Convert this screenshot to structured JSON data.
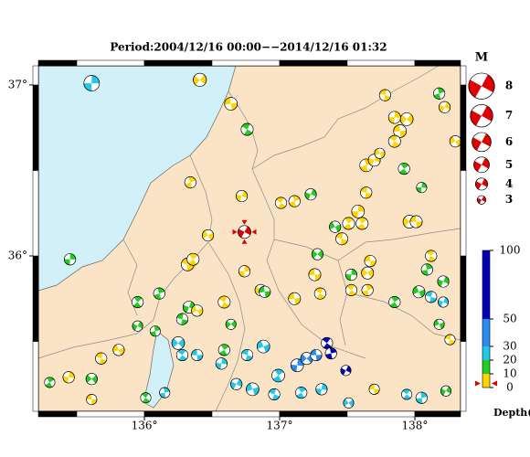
{
  "map": {
    "title": "Period:2004/12/16 00:00−−2014/12/16 01:32",
    "xlim": [
      135.216,
      138.338
    ],
    "ylim": [
      35.091,
      37.112
    ],
    "xticks": [
      {
        "value": 136,
        "label": "136°"
      },
      {
        "value": 137,
        "label": "137°"
      },
      {
        "value": 138,
        "label": "138°"
      }
    ],
    "yticks": [
      {
        "value": 36,
        "label": "36°"
      },
      {
        "value": 37,
        "label": "37°"
      }
    ],
    "events": {
      "lon": [
        135.61,
        136.41,
        136.64,
        136.76,
        136.34,
        136.72,
        136.47,
        136.32,
        136.36,
        136.74,
        136.86,
        136.89,
        136.59,
        136.11,
        136.33,
        136.39,
        136.28,
        135.95,
        135.45,
        136.64,
        137.11,
        137.01,
        137.11,
        137.23,
        137.41,
        137.46,
        137.51,
        137.58,
        137.28,
        137.26,
        137.3,
        137.64,
        137.7,
        137.74,
        137.64,
        137.61,
        137.85,
        137.94,
        137.89,
        137.85,
        138.18,
        138.22,
        138.3,
        137.78,
        137.92,
        138.05,
        137.96,
        138.01,
        138.12,
        138.09,
        138.21,
        138.03,
        138.12,
        137.85,
        137.53,
        137.65,
        137.67,
        137.53,
        137.65,
        138.21,
        138.18,
        138.26,
        136.99,
        137.13,
        137.2,
        137.27,
        137.35,
        137.38,
        137.49,
        136.88,
        136.76,
        136.59,
        136.57,
        136.25,
        136.39,
        136.28,
        136.08,
        135.95,
        135.81,
        135.68,
        135.3,
        135.44,
        135.61,
        135.61,
        136.01,
        136.15,
        136.68,
        136.8,
        136.96,
        137.16,
        137.31,
        137.51,
        137.7,
        137.94,
        138.05,
        138.23
      ],
      "lat": [
        37.01,
        37.03,
        36.89,
        36.74,
        36.43,
        36.35,
        36.12,
        35.95,
        35.98,
        35.91,
        35.8,
        35.79,
        35.73,
        35.78,
        35.7,
        35.68,
        35.63,
        35.73,
        35.98,
        35.6,
        35.75,
        36.31,
        36.32,
        36.36,
        36.17,
        36.1,
        36.19,
        36.26,
        36.01,
        35.89,
        35.78,
        36.53,
        36.56,
        36.6,
        36.37,
        36.19,
        36.81,
        36.8,
        36.73,
        36.67,
        36.95,
        36.87,
        36.67,
        36.94,
        36.51,
        36.4,
        36.2,
        36.2,
        36.0,
        35.92,
        35.85,
        35.79,
        35.76,
        35.73,
        35.89,
        35.9,
        35.97,
        35.8,
        35.8,
        35.73,
        35.6,
        35.51,
        35.3,
        35.36,
        35.4,
        35.42,
        35.49,
        35.43,
        35.33,
        35.47,
        35.42,
        35.45,
        35.37,
        35.49,
        35.42,
        35.42,
        35.56,
        35.59,
        35.45,
        35.4,
        35.26,
        35.29,
        35.28,
        35.16,
        35.17,
        35.2,
        35.25,
        35.22,
        35.19,
        35.2,
        35.22,
        35.14,
        35.22,
        35.19,
        35.17,
        35.21
      ],
      "depth": [
        25,
        5,
        5,
        15,
        5,
        5,
        5,
        5,
        5,
        5,
        5,
        15,
        5,
        15,
        15,
        5,
        15,
        15,
        15,
        15,
        5,
        5,
        5,
        15,
        15,
        5,
        5,
        5,
        15,
        5,
        5,
        5,
        5,
        5,
        5,
        5,
        5,
        5,
        5,
        5,
        15,
        5,
        5,
        5,
        15,
        15,
        5,
        5,
        5,
        15,
        15,
        15,
        25,
        15,
        15,
        5,
        5,
        5,
        5,
        25,
        15,
        5,
        25,
        40,
        40,
        40,
        60,
        60,
        60,
        25,
        25,
        15,
        25,
        25,
        25,
        25,
        15,
        15,
        5,
        5,
        15,
        5,
        15,
        5,
        15,
        25,
        25,
        25,
        25,
        25,
        25,
        25,
        5,
        25,
        25,
        15
      ],
      "mag": [
        5,
        4.3,
        4.2,
        4,
        3.8,
        3.8,
        3.8,
        4.2,
        4,
        3.8,
        3.8,
        3.8,
        4,
        3.8,
        4,
        3.8,
        3.8,
        3.8,
        3.8,
        3.5,
        4,
        3.8,
        3.8,
        3.8,
        3.8,
        4,
        4,
        4.2,
        3.8,
        4,
        3.8,
        4.2,
        4,
        3.5,
        3.8,
        4,
        4,
        4.2,
        4.2,
        4,
        3.8,
        3.8,
        3.8,
        3.8,
        3.8,
        3.5,
        4.2,
        4,
        3.8,
        3.8,
        3.8,
        4,
        3.8,
        3.8,
        3.8,
        4,
        3.8,
        3.8,
        3.8,
        3.5,
        3.5,
        3.5,
        4.2,
        4.2,
        4,
        3.8,
        3.8,
        3.8,
        3.5,
        4.2,
        3.8,
        3.8,
        3.8,
        4.2,
        3.8,
        3.8,
        3.5,
        3.5,
        3.8,
        3.8,
        3.5,
        3.8,
        3.8,
        3.5,
        3.5,
        3.5,
        3.8,
        4.2,
        3.8,
        3.8,
        3.8,
        3.5,
        3.5,
        3.5,
        3.8,
        3.5
      ]
    },
    "latest_event": {
      "lon": 136.74,
      "lat": 36.14,
      "depth": 3,
      "mag": 4.2,
      "color": "#e00000"
    },
    "magnitude_legend": {
      "title": "M",
      "values": [
        8,
        7,
        6,
        5,
        4,
        3
      ],
      "color": "#e00000"
    },
    "depth_colorbar": {
      "label": "Depth(km)",
      "ticks": [
        0,
        10,
        20,
        30,
        50,
        100
      ],
      "colors": [
        "#ffd400",
        "#22cc22",
        "#22c8e8",
        "#2a8cf0",
        "#0000b4"
      ]
    }
  }
}
